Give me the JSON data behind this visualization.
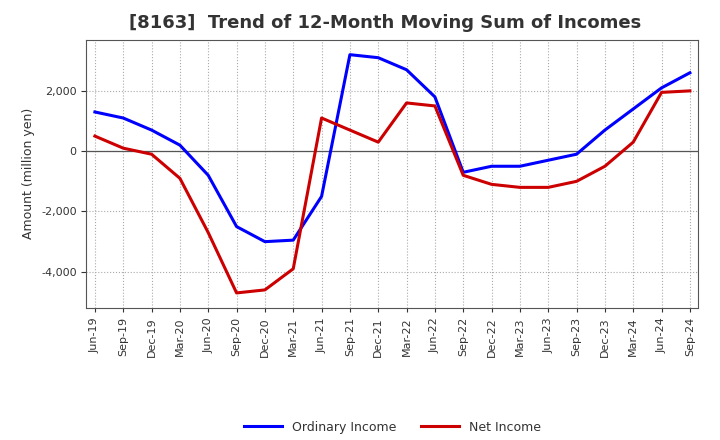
{
  "title": "[8163]  Trend of 12-Month Moving Sum of Incomes",
  "ylabel": "Amount (million yen)",
  "x_labels": [
    "Jun-19",
    "Sep-19",
    "Dec-19",
    "Mar-20",
    "Jun-20",
    "Sep-20",
    "Dec-20",
    "Mar-21",
    "Jun-21",
    "Sep-21",
    "Dec-21",
    "Mar-22",
    "Jun-22",
    "Sep-22",
    "Dec-22",
    "Mar-23",
    "Jun-23",
    "Sep-23",
    "Dec-23",
    "Mar-24",
    "Jun-24",
    "Sep-24"
  ],
  "ordinary_income": [
    1300,
    1100,
    700,
    200,
    -800,
    -2500,
    -3000,
    -2950,
    -1500,
    3200,
    3100,
    2700,
    1800,
    -700,
    -500,
    -500,
    -300,
    -100,
    700,
    1400,
    2100,
    2600
  ],
  "net_income": [
    500,
    100,
    -100,
    -900,
    -2700,
    -4700,
    -4600,
    -3900,
    1100,
    700,
    300,
    1600,
    1500,
    -800,
    -1100,
    -1200,
    -1200,
    -1000,
    -500,
    300,
    1950,
    2000
  ],
  "ordinary_color": "#0000FF",
  "net_color": "#CC0000",
  "bg_color": "#FFFFFF",
  "plot_bg_color": "#FFFFFF",
  "ylim": [
    -5200,
    3700
  ],
  "yticks": [
    -4000,
    -2000,
    0,
    2000
  ],
  "grid_color": "#AAAAAA",
  "line_width": 2.2,
  "title_fontsize": 13,
  "label_fontsize": 9,
  "tick_fontsize": 8
}
